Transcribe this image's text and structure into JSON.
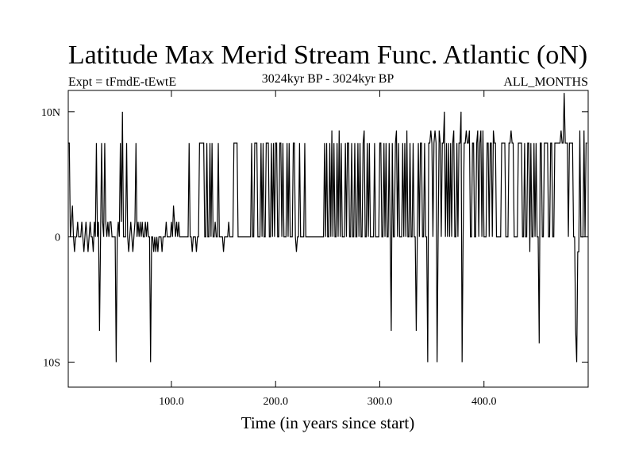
{
  "header": {
    "title": "Latitude Max Merid Stream Func. Atlantic (oN)",
    "subtitle_left": "Expt = tFmdE-tEwtE",
    "subtitle_center": "3024kyr BP - 3024kyr BP",
    "subtitle_right": "ALL_MONTHS"
  },
  "chart_data": {
    "type": "line",
    "title": "Latitude Max Merid Stream Func. Atlantic (oN)",
    "xlabel": "Time (in years since start)",
    "ylabel": "",
    "xlim": [
      1,
      500
    ],
    "ylim": [
      -12,
      11.7
    ],
    "x_ticks": [
      {
        "value": 100,
        "label": "100.0"
      },
      {
        "value": 200,
        "label": "200.0"
      },
      {
        "value": 300,
        "label": "300.0"
      },
      {
        "value": 400,
        "label": "400.0"
      }
    ],
    "y_ticks": [
      {
        "value": 10,
        "label": "10N"
      },
      {
        "value": 0,
        "label": "0"
      },
      {
        "value": -10,
        "label": "10S"
      }
    ],
    "grid": false,
    "series": [
      {
        "color": "#000000",
        "x_start": 1,
        "x_step": 1,
        "values": [
          7.5,
          7.5,
          0,
          1.2,
          2.5,
          0,
          -1.2,
          0,
          0,
          1.2,
          0,
          0,
          0,
          1.2,
          0,
          -1.2,
          0,
          1.2,
          0,
          -1.2,
          0,
          1.2,
          0,
          0,
          -1.2,
          1.2,
          0,
          7.5,
          0,
          1.2,
          -7.5,
          0,
          7.5,
          1.2,
          0,
          7.5,
          1.2,
          0,
          1.2,
          0,
          1.2,
          1.2,
          0,
          0,
          0,
          0,
          -10,
          0,
          1.2,
          0,
          7.5,
          1.2,
          10,
          0,
          0,
          0,
          7.5,
          0,
          -1.2,
          0,
          1.2,
          0,
          -1.2,
          0,
          1.2,
          7.5,
          0,
          1.2,
          0,
          1.2,
          0,
          1.2,
          0,
          0,
          1.2,
          0,
          1.2,
          0,
          0,
          -10,
          0,
          0,
          -1.2,
          0,
          -1.2,
          0,
          -1.2,
          0,
          0,
          0,
          -1.2,
          0,
          0,
          0,
          1.2,
          0,
          0,
          0,
          0,
          1.2,
          0,
          2.5,
          1.2,
          0,
          1.2,
          0,
          1.2,
          0,
          0,
          0,
          0,
          0,
          0,
          0,
          0,
          0,
          7.5,
          0,
          0,
          -1.2,
          0,
          0,
          0,
          -1.2,
          0,
          0,
          7.5,
          7.5,
          7.5,
          7.5,
          7.5,
          0,
          0,
          7.5,
          0,
          0,
          7.5,
          0,
          7.5,
          0,
          0,
          1.2,
          0,
          0,
          7.5,
          0,
          0,
          0,
          0,
          -1.2,
          0,
          0,
          0,
          0,
          1.2,
          0,
          0,
          0,
          0,
          7.5,
          7.5,
          7.5,
          7.5,
          0,
          0,
          0,
          0,
          0,
          0,
          0,
          0,
          0,
          0,
          0,
          0,
          0,
          7.5,
          0,
          0,
          7.5,
          7.5,
          7.5,
          0,
          0,
          0,
          7.5,
          0,
          7.5,
          0,
          0,
          7.5,
          7.5,
          7.5,
          0,
          0,
          7.5,
          0,
          7.5,
          0,
          7.5,
          7.5,
          0,
          0,
          7.5,
          7.5,
          0,
          7.5,
          0,
          0,
          0,
          7.5,
          0,
          7.5,
          0,
          0,
          0,
          7.5,
          7.5,
          0,
          -1.2,
          0,
          0,
          7.5,
          0,
          0,
          0,
          0,
          7.5,
          0,
          0,
          0,
          0,
          0,
          0,
          0,
          0,
          0,
          0,
          0,
          0,
          0,
          0,
          0,
          0,
          0,
          0,
          7.5,
          0,
          7.5,
          0,
          0,
          7.5,
          0,
          8.5,
          0,
          7.5,
          0,
          0,
          7.5,
          0,
          8.5,
          0,
          7.5,
          0,
          0,
          0,
          7.5,
          0,
          7.5,
          7.5,
          0,
          0,
          7.5,
          0,
          0,
          7.5,
          0,
          0,
          7.5,
          0,
          7.5,
          0,
          0,
          7.5,
          8.5,
          0,
          0,
          7.5,
          0,
          7.5,
          0,
          0,
          0,
          0,
          7.5,
          0,
          0,
          0,
          0,
          7.5,
          7.5,
          0,
          0,
          7.5,
          0,
          7.5,
          0,
          0,
          7.5,
          0,
          -7.5,
          7.5,
          0,
          0,
          7.5,
          8.5,
          0,
          7.5,
          0,
          0,
          0,
          7.5,
          0,
          7.5,
          0,
          8.5,
          0,
          0,
          7.5,
          0,
          0,
          7.5,
          0,
          0,
          -7.5,
          0,
          7.5,
          0,
          7.5,
          7.5,
          0,
          0,
          7.5,
          0,
          0,
          -10,
          7.5,
          7.5,
          8.5,
          7.5,
          0,
          7.5,
          8.5,
          7.5,
          -10,
          0,
          8.5,
          7.5,
          0,
          7.5,
          7.5,
          10,
          0,
          7.5,
          0,
          7.5,
          0,
          7.5,
          0,
          7.5,
          8.5,
          0,
          0,
          7.5,
          0,
          7.5,
          7.5,
          10,
          -10,
          0,
          7.5,
          7.5,
          8.5,
          7.5,
          7.5,
          8.5,
          0,
          0,
          7.5,
          7.5,
          0,
          0,
          7.5,
          8.5,
          0,
          7.5,
          8.5,
          0,
          8.5,
          0,
          0,
          0,
          7.5,
          7.5,
          0,
          7.5,
          7.5,
          0,
          8.5,
          7.5,
          7.5,
          0,
          0,
          0,
          0,
          0,
          7.5,
          7.5,
          7.5,
          7.5,
          0,
          0,
          0,
          7.5,
          7.5,
          8.5,
          7.5,
          7.5,
          0,
          0,
          0,
          0,
          7.5,
          7.5,
          7.5,
          7.5,
          0,
          0,
          7.5,
          0,
          0,
          7.5,
          7.5,
          -1.2,
          7.5,
          0,
          0,
          7.5,
          0,
          7.5,
          0,
          0,
          -8.5,
          7.5,
          7.5,
          0,
          0,
          7.5,
          7.5,
          7.5,
          7.5,
          0,
          0,
          7.5,
          7.5,
          0,
          0,
          7.5,
          7.5,
          7.5,
          7.5,
          7.5,
          7.5,
          8.5,
          7.5,
          7.5,
          11.5,
          7.5,
          7.5,
          7.5,
          0,
          7.5,
          7.5,
          7.5,
          7.5,
          0,
          0,
          -7.5,
          -10,
          -1.2,
          -1.2,
          8.5,
          0,
          0,
          0,
          8.5,
          0,
          7.5,
          7.5
        ]
      }
    ]
  }
}
